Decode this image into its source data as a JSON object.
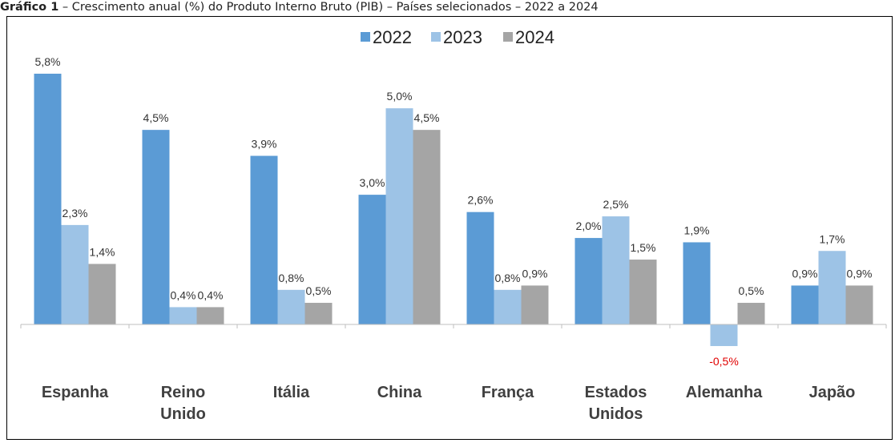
{
  "caption": {
    "label": "Gráfico 1",
    "text": " – Crescimento anual (%) do Produto Interno Bruto (PIB) – Países selecionados – 2022 a 2024"
  },
  "chart_data": {
    "type": "bar",
    "title": "",
    "xlabel": "",
    "ylabel": "",
    "categories": [
      "Espanha",
      "Reino Unido",
      "Itália",
      "China",
      "França",
      "Estados Unidos",
      "Alemanha",
      "Japão"
    ],
    "category_label_lines": [
      [
        "Espanha"
      ],
      [
        "Reino",
        "Unido"
      ],
      [
        "Itália"
      ],
      [
        "China"
      ],
      [
        "França"
      ],
      [
        "Estados",
        "Unidos"
      ],
      [
        "Alemanha"
      ],
      [
        "Japão"
      ]
    ],
    "series": [
      {
        "name": "2022",
        "color": "#5b9bd5",
        "values": [
          5.8,
          4.5,
          3.9,
          3.0,
          2.6,
          2.0,
          1.9,
          0.9
        ],
        "labels": [
          "5,8%",
          "4,5%",
          "3,9%",
          "3,0%",
          "2,6%",
          "2,0%",
          "1,9%",
          "0,9%"
        ]
      },
      {
        "name": "2023",
        "color": "#9dc3e6",
        "values": [
          2.3,
          0.4,
          0.8,
          5.0,
          0.8,
          2.5,
          -0.5,
          1.7
        ],
        "labels": [
          "2,3%",
          "0,4%",
          "0,8%",
          "5,0%",
          "0,8%",
          "2,5%",
          "-0,5%",
          "1,7%"
        ]
      },
      {
        "name": "2024",
        "color": "#a5a5a5",
        "values": [
          1.4,
          0.4,
          0.5,
          4.5,
          0.9,
          1.5,
          0.5,
          0.9
        ],
        "labels": [
          "1,4%",
          "0,4%",
          "0,5%",
          "4,5%",
          "0,9%",
          "1,5%",
          "0,5%",
          "0,9%"
        ]
      }
    ],
    "negative_label_color": "#e00000",
    "axis_color": "#bfbfbf",
    "legend": "top-center",
    "grid": false,
    "ylim": [
      -0.5,
      5.8
    ]
  }
}
